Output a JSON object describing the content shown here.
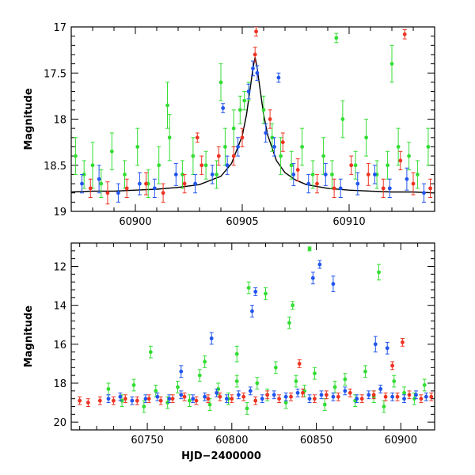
{
  "chart_data": [
    {
      "type": "scatter",
      "panel": "top",
      "ylabel": "Magnitude",
      "xlabel": "",
      "xlim": [
        60897,
        60914
      ],
      "ylim": [
        19.0,
        17.0
      ],
      "y_inverted": true,
      "xticks": [
        60900,
        60905,
        60910
      ],
      "xtick_labels": [
        "60900",
        "60905",
        "60910"
      ],
      "yticks": [
        17,
        17.5,
        18,
        18.5,
        19
      ],
      "ytick_labels": [
        "17",
        "17.5",
        "18",
        "18.5",
        "19"
      ],
      "grid": false,
      "legend": "none",
      "error_bars": true,
      "model_curve": {
        "color": "#000000",
        "peak_x": 60905.6,
        "peak_y": 17.3,
        "baseline_y": 18.8,
        "x": [
          60897,
          60898,
          60899,
          60900,
          60901,
          60902,
          60903,
          60904,
          60904.5,
          60905,
          60905.2,
          60905.4,
          60905.5,
          60905.6,
          60905.7,
          60905.8,
          60906,
          60906.2,
          60906.6,
          60907,
          60907.5,
          60908,
          60909,
          60910,
          60911,
          60912,
          60913,
          60914
        ],
        "y": [
          18.79,
          18.78,
          18.78,
          18.77,
          18.76,
          18.74,
          18.71,
          18.62,
          18.48,
          18.18,
          17.95,
          17.62,
          17.45,
          17.33,
          17.45,
          17.62,
          17.95,
          18.18,
          18.45,
          18.58,
          18.66,
          18.71,
          18.75,
          18.77,
          18.78,
          18.79,
          18.79,
          18.8
        ]
      },
      "series": [
        {
          "name": "",
          "color": "#33dd33",
          "x": [
            60897.2,
            60897.6,
            60898.0,
            60898.4,
            60898.9,
            60899.5,
            60900.1,
            60900.6,
            60901.1,
            60901.6,
            60902.2,
            60902.7,
            60903.3,
            60903.8,
            60904.2,
            60904.6,
            60904.9,
            60905.1,
            60905.3,
            60906.0,
            60906.4,
            60906.8,
            60907.3,
            60907.8,
            60908.3,
            60908.8,
            60909.2,
            60909.7,
            60910.3,
            60910.8,
            60911.3,
            60911.8,
            60912.3,
            60912.8,
            60913.2,
            60913.7,
            60901.5,
            60904.0,
            60909.4,
            60912.0
          ],
          "y": [
            18.4,
            18.6,
            18.5,
            18.7,
            18.35,
            18.6,
            18.3,
            18.7,
            18.5,
            18.2,
            18.6,
            18.4,
            18.5,
            18.6,
            18.3,
            18.1,
            17.9,
            17.8,
            17.7,
            17.9,
            18.2,
            18.4,
            18.5,
            18.3,
            18.6,
            18.4,
            18.6,
            18.0,
            18.5,
            18.2,
            18.6,
            18.5,
            18.3,
            18.4,
            18.6,
            18.3,
            17.85,
            17.6,
            17.12,
            17.4
          ],
          "yerr": [
            0.2,
            0.15,
            0.25,
            0.15,
            0.2,
            0.15,
            0.2,
            0.15,
            0.2,
            0.25,
            0.15,
            0.2,
            0.15,
            0.15,
            0.2,
            0.2,
            0.15,
            0.1,
            0.1,
            0.15,
            0.15,
            0.2,
            0.15,
            0.2,
            0.15,
            0.2,
            0.15,
            0.2,
            0.15,
            0.2,
            0.15,
            0.15,
            0.2,
            0.15,
            0.15,
            0.2,
            0.25,
            0.2,
            0.05,
            0.2
          ]
        },
        {
          "name": "",
          "color": "#2255ee",
          "x": [
            60897.5,
            60898.3,
            60899.2,
            60900.2,
            60900.9,
            60901.9,
            60902.8,
            60903.6,
            60904.3,
            60904.8,
            60905.3,
            60905.5,
            60905.7,
            60906.1,
            60906.5,
            60907.4,
            60908.1,
            60908.9,
            60909.6,
            60910.4,
            60911.2,
            60911.9,
            60912.7,
            60913.5,
            60904.1,
            60906.7
          ],
          "y": [
            18.7,
            18.65,
            18.8,
            18.7,
            18.75,
            18.6,
            18.7,
            18.6,
            18.5,
            18.3,
            17.7,
            17.45,
            17.5,
            18.15,
            18.3,
            18.6,
            18.7,
            18.6,
            18.75,
            18.7,
            18.6,
            18.75,
            18.65,
            18.8,
            17.88,
            17.55
          ],
          "yerr": [
            0.1,
            0.15,
            0.1,
            0.12,
            0.1,
            0.12,
            0.1,
            0.1,
            0.1,
            0.1,
            0.08,
            0.08,
            0.08,
            0.1,
            0.1,
            0.12,
            0.1,
            0.12,
            0.1,
            0.12,
            0.1,
            0.1,
            0.12,
            0.1,
            0.05,
            0.05
          ]
        },
        {
          "name": "",
          "color": "#ee3322",
          "x": [
            60897.9,
            60898.7,
            60899.6,
            60900.5,
            60901.3,
            60902.3,
            60903.1,
            60903.9,
            60904.6,
            60905.0,
            60905.6,
            60905.65,
            60906.3,
            60906.9,
            60907.6,
            60908.5,
            60909.3,
            60910.1,
            60910.9,
            60911.6,
            60912.4,
            60913.0,
            60913.8,
            60902.9,
            60912.6
          ],
          "y": [
            18.75,
            18.8,
            18.75,
            18.7,
            18.8,
            18.7,
            18.5,
            18.4,
            18.4,
            18.2,
            17.3,
            17.05,
            18.0,
            18.25,
            18.55,
            18.7,
            18.75,
            18.5,
            18.6,
            18.75,
            18.45,
            18.7,
            18.75,
            18.2,
            17.08
          ],
          "yerr": [
            0.1,
            0.12,
            0.1,
            0.12,
            0.1,
            0.1,
            0.1,
            0.1,
            0.1,
            0.1,
            0.08,
            0.05,
            0.1,
            0.1,
            0.12,
            0.1,
            0.1,
            0.1,
            0.12,
            0.1,
            0.1,
            0.12,
            0.1,
            0.05,
            0.05
          ]
        }
      ]
    },
    {
      "type": "scatter",
      "panel": "bottom",
      "ylabel": "Magnitude",
      "xlabel": "HJD−2400000",
      "xlim": [
        60705,
        60920
      ],
      "ylim": [
        20.4,
        10.8
      ],
      "y_inverted": true,
      "xticks": [
        60750,
        60800,
        60850,
        60900
      ],
      "xtick_labels": [
        "60750",
        "60800",
        "60850",
        "60900"
      ],
      "yticks": [
        12,
        14,
        16,
        18,
        20
      ],
      "ytick_labels": [
        "12",
        "14",
        "16",
        "18",
        "20"
      ],
      "grid": false,
      "legend": "none",
      "error_bars": true,
      "series": [
        {
          "name": "",
          "color": "#33dd33",
          "x": [
            60727,
            60735,
            60742,
            60748,
            60755,
            60762,
            60768,
            60775,
            60781,
            60787,
            60792,
            60798,
            60803,
            60809,
            60815,
            60821,
            60826,
            60832,
            60838,
            60843,
            60849,
            60855,
            60861,
            60867,
            60873,
            60879,
            60884,
            60890,
            60896,
            60902,
            60908,
            60914,
            60846,
            60810,
            60836,
            60820,
            60887,
            60834,
            60752,
            60784,
            60803
          ],
          "y": [
            18.3,
            18.9,
            18.1,
            19.2,
            18.4,
            19.0,
            18.2,
            18.9,
            17.6,
            19.1,
            18.3,
            18.8,
            17.9,
            19.3,
            18.0,
            18.6,
            17.2,
            19.0,
            17.9,
            18.4,
            17.5,
            19.1,
            18.2,
            17.8,
            18.9,
            17.4,
            18.7,
            19.2,
            17.9,
            18.5,
            18.8,
            18.1,
            11.1,
            13.1,
            14.0,
            13.4,
            12.3,
            14.9,
            16.4,
            16.9,
            16.5
          ],
          "yerr": [
            0.3,
            0.3,
            0.3,
            0.3,
            0.3,
            0.3,
            0.3,
            0.3,
            0.3,
            0.3,
            0.3,
            0.3,
            0.3,
            0.3,
            0.3,
            0.3,
            0.3,
            0.3,
            0.3,
            0.3,
            0.3,
            0.3,
            0.3,
            0.3,
            0.3,
            0.3,
            0.3,
            0.3,
            0.3,
            0.3,
            0.3,
            0.3,
            0.1,
            0.3,
            0.2,
            0.3,
            0.4,
            0.3,
            0.3,
            0.3,
            0.4
          ]
        },
        {
          "name": "",
          "color": "#2255ee",
          "x": [
            60727,
            60734,
            60741,
            60749,
            60756,
            60763,
            60770,
            60777,
            60784,
            60791,
            60797,
            60804,
            60811,
            60818,
            60825,
            60832,
            60839,
            60846,
            60853,
            60860,
            60867,
            60874,
            60881,
            60888,
            60895,
            60902,
            60909,
            60915,
            60848,
            60852,
            60812,
            60814,
            60860,
            60788,
            60885,
            60892,
            60770
          ],
          "y": [
            18.8,
            18.7,
            18.9,
            18.8,
            18.7,
            18.8,
            18.6,
            18.8,
            18.7,
            18.5,
            18.8,
            18.6,
            18.4,
            18.8,
            18.6,
            18.7,
            18.5,
            18.8,
            18.6,
            18.7,
            18.4,
            18.8,
            18.6,
            18.3,
            18.7,
            18.8,
            18.6,
            18.7,
            12.6,
            11.9,
            14.3,
            13.3,
            12.9,
            15.7,
            16.0,
            16.2,
            17.4
          ],
          "yerr": [
            0.2,
            0.2,
            0.2,
            0.2,
            0.2,
            0.2,
            0.2,
            0.2,
            0.2,
            0.2,
            0.2,
            0.2,
            0.2,
            0.2,
            0.2,
            0.2,
            0.2,
            0.2,
            0.2,
            0.2,
            0.2,
            0.2,
            0.2,
            0.2,
            0.2,
            0.2,
            0.2,
            0.2,
            0.3,
            0.2,
            0.3,
            0.2,
            0.4,
            0.3,
            0.4,
            0.3,
            0.3
          ]
        },
        {
          "name": "",
          "color": "#ee3322",
          "x": [
            60710,
            60715,
            60722,
            60730,
            60737,
            60744,
            60751,
            60758,
            60765,
            60772,
            60779,
            60786,
            60793,
            60800,
            60807,
            60814,
            60821,
            60828,
            60835,
            60842,
            60849,
            60856,
            60863,
            60870,
            60877,
            60884,
            60891,
            60898,
            60905,
            60912,
            60918,
            60901,
            60895,
            60840
          ],
          "y": [
            18.9,
            19.0,
            18.9,
            18.9,
            18.8,
            18.9,
            18.8,
            18.9,
            18.8,
            18.7,
            18.9,
            18.8,
            18.7,
            18.8,
            18.7,
            18.9,
            18.6,
            18.8,
            18.7,
            18.5,
            18.8,
            18.6,
            18.7,
            18.5,
            18.8,
            18.6,
            18.7,
            18.7,
            18.6,
            18.8,
            18.7,
            15.9,
            17.1,
            17.0
          ],
          "yerr": [
            0.2,
            0.2,
            0.2,
            0.2,
            0.2,
            0.2,
            0.2,
            0.2,
            0.2,
            0.2,
            0.2,
            0.2,
            0.2,
            0.2,
            0.2,
            0.2,
            0.2,
            0.2,
            0.2,
            0.2,
            0.2,
            0.2,
            0.2,
            0.2,
            0.2,
            0.2,
            0.2,
            0.2,
            0.2,
            0.2,
            0.2,
            0.2,
            0.2,
            0.2
          ]
        }
      ]
    }
  ]
}
